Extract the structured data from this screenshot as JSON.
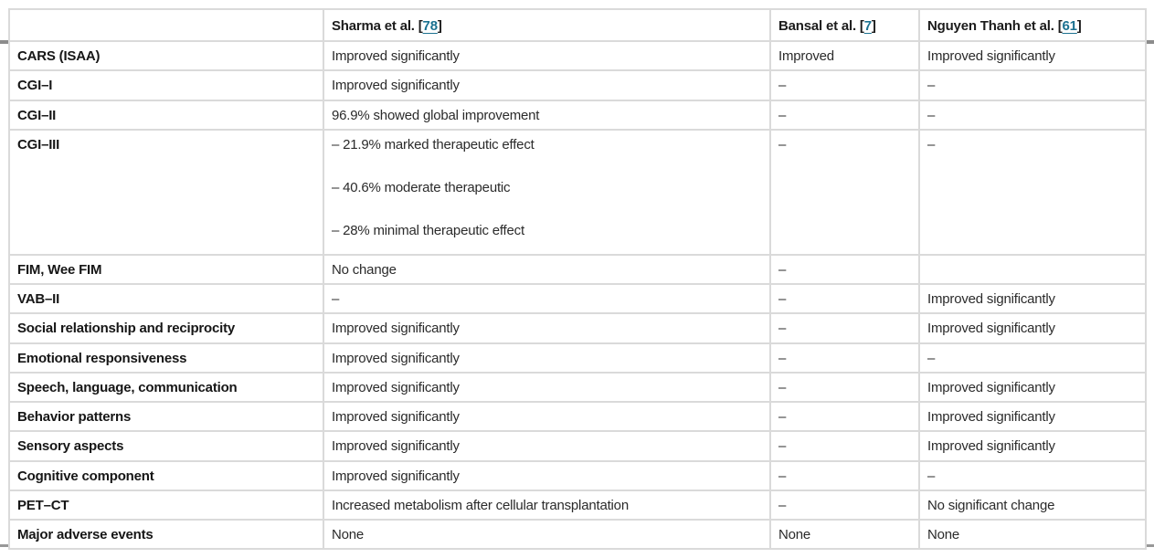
{
  "colors": {
    "link_teal": "#1b7190",
    "grid_light": "#dadada",
    "rule_heavy": "#8c8c8c",
    "text_dark": "#1c1c1c"
  },
  "table": {
    "ref_open": "[",
    "ref_close": "]",
    "columns": [
      {
        "label": "",
        "ref": null
      },
      {
        "label": "Sharma et al. ",
        "ref": "78"
      },
      {
        "label": "Bansal et al. ",
        "ref": "7"
      },
      {
        "label": "Nguyen Thanh et al. ",
        "ref": "61"
      }
    ],
    "rows": [
      {
        "label": "CARS (ISAA)",
        "cells": [
          "Improved significantly",
          "Improved",
          "Improved significantly"
        ]
      },
      {
        "label": "CGI–I",
        "cells": [
          "Improved significantly",
          "–",
          "–"
        ]
      },
      {
        "label": "CGI–II",
        "cells": [
          "96.9% showed global improvement",
          "–",
          "–"
        ]
      },
      {
        "label": "CGI–III",
        "cells": [
          [
            "– 21.9% marked therapeutic effect",
            "– 40.6% moderate therapeutic",
            "– 28% minimal therapeutic effect"
          ],
          "–",
          "–"
        ],
        "tall": true
      },
      {
        "label": "FIM, Wee FIM",
        "cells": [
          "No change",
          "–",
          ""
        ]
      },
      {
        "label": "VAB–II",
        "cells": [
          "–",
          "–",
          "Improved significantly"
        ]
      },
      {
        "label": "Social relationship and reciprocity",
        "cells": [
          "Improved significantly",
          "–",
          "Improved significantly"
        ]
      },
      {
        "label": "Emotional responsiveness",
        "cells": [
          "Improved significantly",
          "–",
          "–"
        ]
      },
      {
        "label": "Speech, language, communication",
        "cells": [
          "Improved significantly",
          "–",
          "Improved significantly"
        ]
      },
      {
        "label": "Behavior patterns",
        "cells": [
          "Improved significantly",
          "–",
          "Improved significantly"
        ]
      },
      {
        "label": "Sensory aspects",
        "cells": [
          "Improved significantly",
          "–",
          "Improved significantly"
        ]
      },
      {
        "label": "Cognitive component",
        "cells": [
          "Improved significantly",
          "–",
          "–"
        ]
      },
      {
        "label": "PET–CT",
        "cells": [
          "Increased metabolism after cellular transplantation",
          "–",
          "No significant change"
        ]
      },
      {
        "label": "Major adverse events",
        "cells": [
          "None",
          "None",
          "None"
        ]
      }
    ]
  }
}
